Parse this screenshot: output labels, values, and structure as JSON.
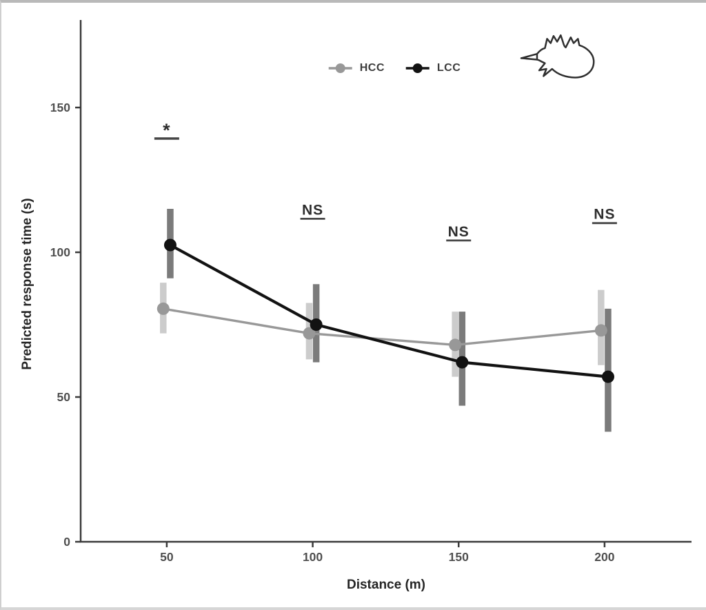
{
  "figure": {
    "background": "#ffffff",
    "frame_border_color": "#b9b9b9",
    "axis_color": "#3a3a3a",
    "tick_label_color": "#4f4f4f",
    "annotation_color": "#2e2e2e"
  },
  "icons": {
    "bird": "flying-bird-outline-icon"
  },
  "chart_data": {
    "type": "line",
    "title": "",
    "xlabel": "Distance (m)",
    "ylabel": "Predicted response time (s)",
    "x_ticks": [
      50,
      100,
      150,
      200
    ],
    "y_ticks": [
      0,
      50,
      100,
      150
    ],
    "xlim": [
      20.5,
      230
    ],
    "ylim": [
      0,
      180
    ],
    "grid": false,
    "legend_position": "top-center",
    "error_bars": "vertical thick bars (confidence intervals)",
    "categories": [
      50,
      100,
      150,
      200
    ],
    "series": [
      {
        "name": "HCC",
        "color": "#989898",
        "errorbar_color": "#cccccc",
        "x_offset": -1.2,
        "values": [
          80.5,
          72,
          68,
          73
        ],
        "ci_low": [
          72,
          63,
          57,
          61
        ],
        "ci_high": [
          89.5,
          82.5,
          79.5,
          87
        ]
      },
      {
        "name": "LCC",
        "color": "#121212",
        "errorbar_color": "#7b7b7b",
        "x_offset": 1.2,
        "values": [
          102.5,
          75,
          62,
          57
        ],
        "ci_low": [
          91,
          62,
          47,
          38
        ],
        "ci_high": [
          115,
          89,
          79.5,
          80.5
        ]
      }
    ],
    "annotations": [
      {
        "label": "*",
        "x": 50,
        "y": 140.0,
        "underline": true
      },
      {
        "label": "NS",
        "x": 100,
        "y": 113.0,
        "underline": true
      },
      {
        "label": "NS",
        "x": 150,
        "y": 105.5,
        "underline": true
      },
      {
        "label": "NS",
        "x": 200,
        "y": 111.5,
        "underline": true
      }
    ]
  }
}
